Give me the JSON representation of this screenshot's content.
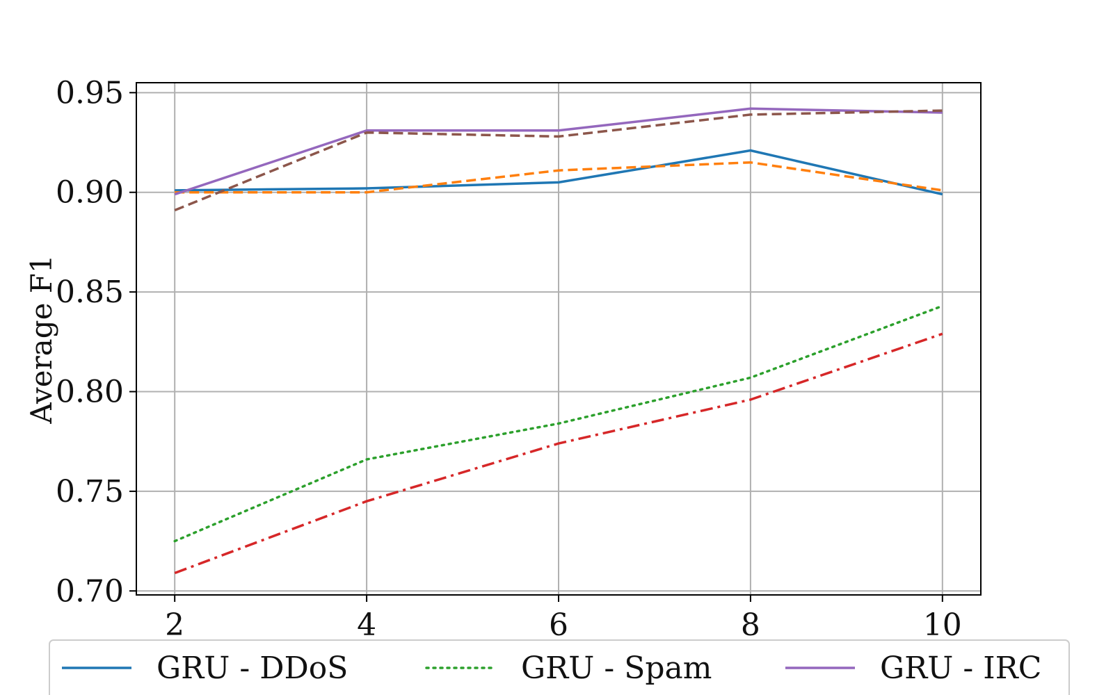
{
  "chart_data": {
    "type": "line",
    "ylabel": "Average F1",
    "xlabel": "",
    "x": [
      2,
      4,
      6,
      8,
      10
    ],
    "xticks": [
      "2",
      "4",
      "6",
      "8",
      "10"
    ],
    "yticks": [
      "0.70",
      "0.75",
      "0.80",
      "0.85",
      "0.90",
      "0.95"
    ],
    "ylim": [
      0.698,
      0.955
    ],
    "xlim": [
      1.6,
      10.4
    ],
    "grid": true,
    "legend_position": "bottom",
    "series": [
      {
        "name": "GRU - DDoS",
        "values": [
          0.901,
          0.902,
          0.905,
          0.921,
          0.899
        ],
        "color": "#1f77b4",
        "style": "solid"
      },
      {
        "values": [
          0.9,
          0.9,
          0.911,
          0.915,
          0.901
        ],
        "color": "#ff7f0e",
        "style": "dashed"
      },
      {
        "name": "GRU - Spam",
        "values": [
          0.725,
          0.766,
          0.784,
          0.807,
          0.843
        ],
        "color": "#2ca02c",
        "style": "dotted"
      },
      {
        "values": [
          0.709,
          0.745,
          0.774,
          0.796,
          0.829
        ],
        "color": "#d62728",
        "style": "dashdot"
      },
      {
        "name": "GRU - IRC",
        "values": [
          0.899,
          0.931,
          0.931,
          0.942,
          0.94
        ],
        "color": "#9467bd",
        "style": "solid"
      },
      {
        "values": [
          0.891,
          0.93,
          0.928,
          0.939,
          0.941
        ],
        "color": "#8c564b",
        "style": "dashed"
      }
    ]
  }
}
